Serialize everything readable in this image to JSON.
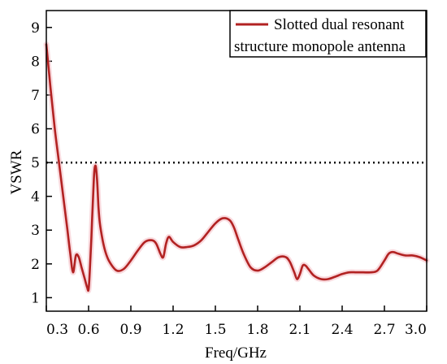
{
  "chart_data": {
    "type": "line",
    "xlabel": "Freq/GHz",
    "ylabel": "VSWR",
    "xlim": [
      0.3,
      3.0
    ],
    "ylim": [
      0.6,
      9.5
    ],
    "x_ticks": [
      "0.3",
      "0.6",
      "0.9",
      "1.2",
      "1.5",
      "1.8",
      "2.1",
      "2.4",
      "2.7",
      "3.0"
    ],
    "y_ticks": [
      "1",
      "2",
      "3",
      "4",
      "5",
      "6",
      "7",
      "8",
      "9"
    ],
    "grid": false,
    "legend_position": "top-right",
    "reference_line": {
      "y": 5.0,
      "style": "dotted",
      "color": "#000000"
    },
    "series": [
      {
        "name": "Slotted dual resonant structure monopole antenna",
        "legend_lines": [
          "Slotted dual resonant",
          "structure monopole antenna"
        ],
        "color": "#b22222",
        "x": [
          0.3,
          0.33,
          0.36,
          0.39,
          0.42,
          0.45,
          0.47,
          0.49,
          0.51,
          0.53,
          0.55,
          0.57,
          0.59,
          0.6,
          0.61,
          0.62,
          0.63,
          0.64,
          0.65,
          0.66,
          0.67,
          0.68,
          0.7,
          0.72,
          0.75,
          0.8,
          0.85,
          0.9,
          0.95,
          1.0,
          1.05,
          1.08,
          1.11,
          1.13,
          1.15,
          1.17,
          1.2,
          1.25,
          1.3,
          1.35,
          1.4,
          1.45,
          1.5,
          1.55,
          1.6,
          1.63,
          1.66,
          1.7,
          1.75,
          1.8,
          1.85,
          1.9,
          1.95,
          2.0,
          2.03,
          2.06,
          2.08,
          2.1,
          2.12,
          2.14,
          2.16,
          2.2,
          2.25,
          2.3,
          2.35,
          2.4,
          2.45,
          2.5,
          2.55,
          2.6,
          2.65,
          2.7,
          2.73,
          2.76,
          2.8,
          2.85,
          2.9,
          2.95,
          3.0
        ],
        "values": [
          8.5,
          7.2,
          6.0,
          5.0,
          4.0,
          3.0,
          2.3,
          1.75,
          2.25,
          2.2,
          1.9,
          1.6,
          1.3,
          1.25,
          1.9,
          2.8,
          3.8,
          4.7,
          4.9,
          4.5,
          3.7,
          3.2,
          2.7,
          2.35,
          2.05,
          1.8,
          1.85,
          2.1,
          2.4,
          2.65,
          2.7,
          2.6,
          2.3,
          2.2,
          2.6,
          2.8,
          2.65,
          2.5,
          2.5,
          2.55,
          2.7,
          2.95,
          3.2,
          3.35,
          3.3,
          3.1,
          2.75,
          2.3,
          1.9,
          1.8,
          1.9,
          2.05,
          2.2,
          2.2,
          2.05,
          1.75,
          1.55,
          1.7,
          1.95,
          1.95,
          1.85,
          1.65,
          1.55,
          1.55,
          1.62,
          1.7,
          1.75,
          1.75,
          1.75,
          1.75,
          1.8,
          2.1,
          2.3,
          2.35,
          2.3,
          2.25,
          2.25,
          2.2,
          2.1
        ]
      }
    ]
  }
}
